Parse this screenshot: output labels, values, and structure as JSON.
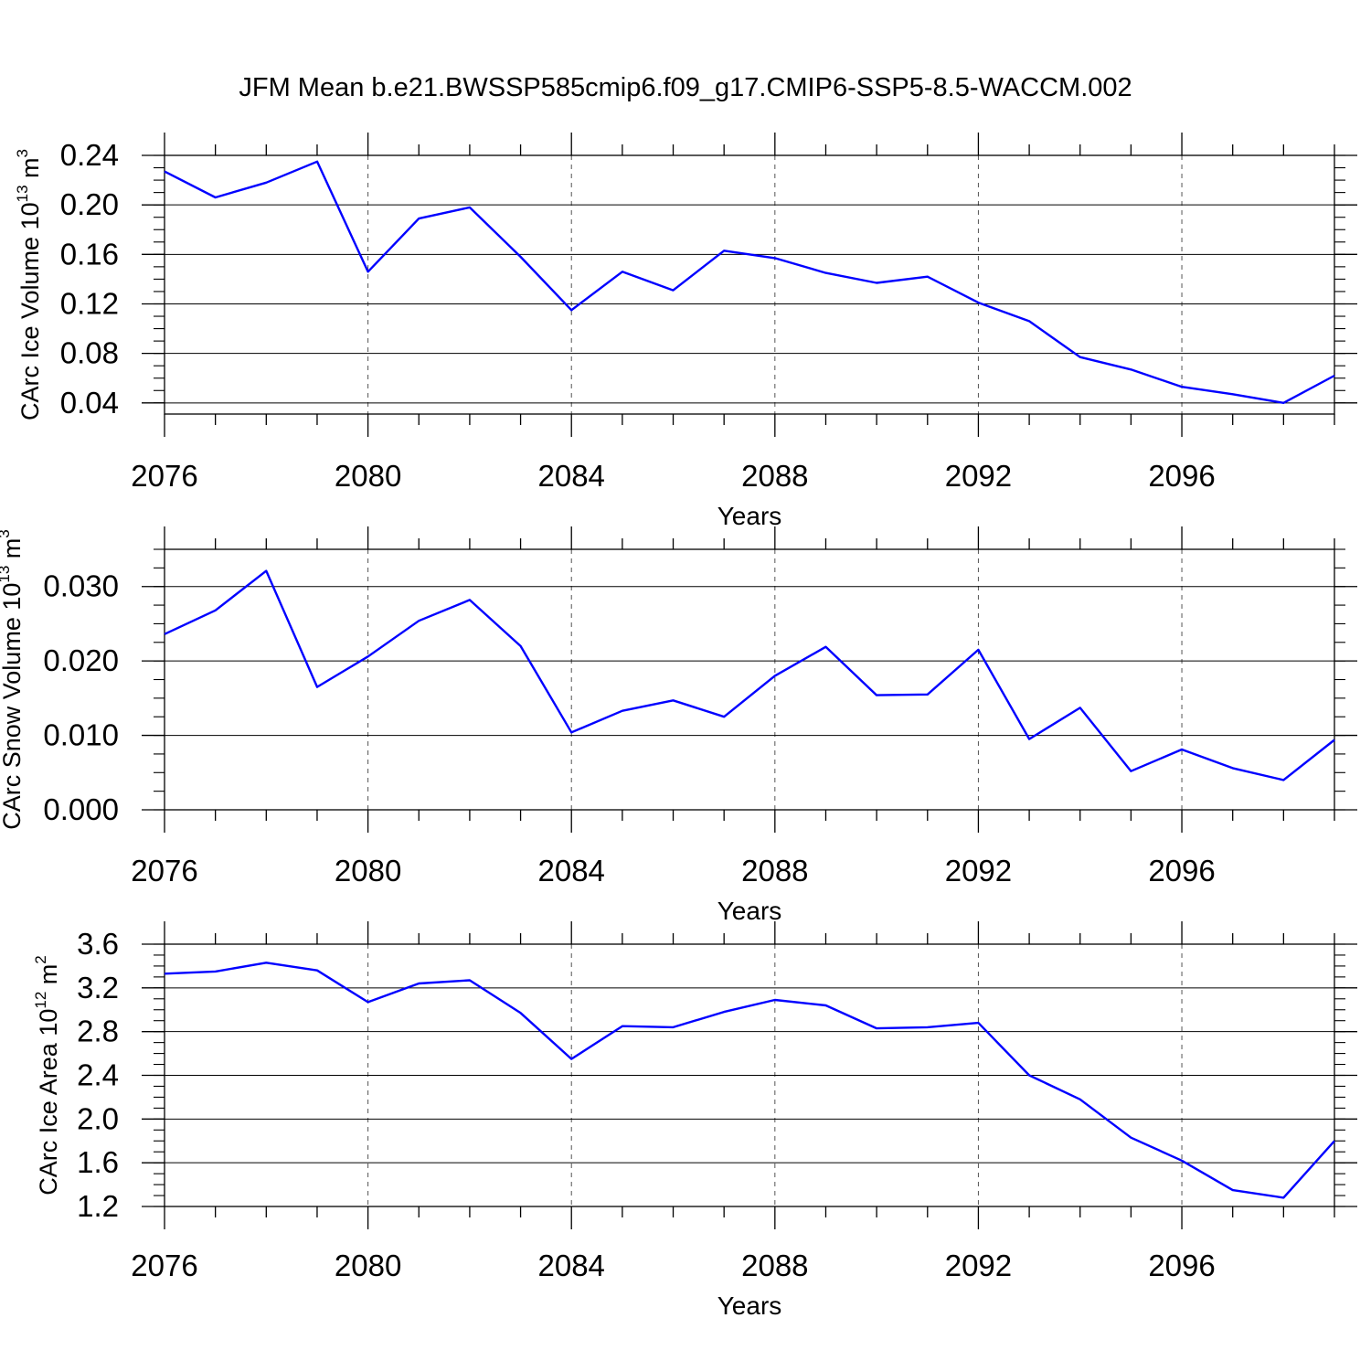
{
  "title": "JFM Mean b.e21.BWSSP585cmip6.f09_g17.CMIP6-SSP5-8.5-WACCM.002",
  "colors": {
    "line": "#0000ff",
    "axis": "#000000",
    "grid": "#555555",
    "background": "#ffffff"
  },
  "chart_data": [
    {
      "type": "line",
      "title": "",
      "xlabel": "Years",
      "ylabel": "CArc Ice Volume 10",
      "ylabel_sup": "13",
      "ylabel_unit": "m",
      "ylabel_unit_sup": "3",
      "xlim": [
        2076,
        2099
      ],
      "ylim": [
        0.031,
        0.24
      ],
      "xticks": [
        "2076",
        "2080",
        "2084",
        "2088",
        "2092",
        "2096"
      ],
      "yticks": [
        "0.04",
        "0.08",
        "0.12",
        "0.16",
        "0.20",
        "0.24"
      ],
      "grid": "vertical dashed at labeled years",
      "series": [
        {
          "x": [
            2076,
            2077,
            2078,
            2079,
            2080,
            2081,
            2082,
            2083,
            2084,
            2085,
            2086,
            2087,
            2088,
            2089,
            2090,
            2091,
            2092,
            2093,
            2094,
            2095,
            2096,
            2097,
            2098,
            2099
          ],
          "values": [
            0.227,
            0.206,
            0.218,
            0.235,
            0.146,
            0.189,
            0.198,
            0.158,
            0.115,
            0.146,
            0.131,
            0.163,
            0.157,
            0.145,
            0.137,
            0.142,
            0.121,
            0.106,
            0.077,
            0.067,
            0.053,
            0.047,
            0.04,
            0.062
          ]
        }
      ]
    },
    {
      "type": "line",
      "title": "",
      "xlabel": "Years",
      "ylabel": "CArc Snow Volume 10",
      "ylabel_sup": "13",
      "ylabel_unit": "m",
      "ylabel_unit_sup": "3",
      "xlim": [
        2076,
        2099
      ],
      "ylim": [
        0.0,
        0.035
      ],
      "xticks": [
        "2076",
        "2080",
        "2084",
        "2088",
        "2092",
        "2096"
      ],
      "yticks": [
        "0.000",
        "0.010",
        "0.020",
        "0.030"
      ],
      "grid": "vertical dashed at labeled years",
      "series": [
        {
          "x": [
            2076,
            2077,
            2078,
            2079,
            2080,
            2081,
            2082,
            2083,
            2084,
            2085,
            2086,
            2087,
            2088,
            2089,
            2090,
            2091,
            2092,
            2093,
            2094,
            2095,
            2096,
            2097,
            2098,
            2099
          ],
          "values": [
            0.0236,
            0.0268,
            0.0321,
            0.0165,
            0.0206,
            0.0254,
            0.0282,
            0.022,
            0.0104,
            0.0133,
            0.0147,
            0.0125,
            0.018,
            0.0219,
            0.0154,
            0.0155,
            0.0215,
            0.0095,
            0.0137,
            0.0052,
            0.0081,
            0.0056,
            0.004,
            0.0094
          ]
        }
      ]
    },
    {
      "type": "line",
      "title": "",
      "xlabel": "Years",
      "ylabel": "CArc Ice Area 10",
      "ylabel_sup": "12",
      "ylabel_unit": "m",
      "ylabel_unit_sup": "2",
      "xlim": [
        2076,
        2099
      ],
      "ylim": [
        1.2,
        3.6
      ],
      "xticks": [
        "2076",
        "2080",
        "2084",
        "2088",
        "2092",
        "2096"
      ],
      "yticks": [
        "1.2",
        "1.6",
        "2.0",
        "2.4",
        "2.8",
        "3.2",
        "3.6"
      ],
      "grid": "vertical dashed at labeled years",
      "series": [
        {
          "x": [
            2076,
            2077,
            2078,
            2079,
            2080,
            2081,
            2082,
            2083,
            2084,
            2085,
            2086,
            2087,
            2088,
            2089,
            2090,
            2091,
            2092,
            2093,
            2094,
            2095,
            2096,
            2097,
            2098,
            2099
          ],
          "values": [
            3.33,
            3.35,
            3.43,
            3.36,
            3.07,
            3.24,
            3.27,
            2.97,
            2.55,
            2.85,
            2.84,
            2.98,
            3.09,
            3.04,
            2.83,
            2.84,
            2.88,
            2.4,
            2.18,
            1.83,
            1.62,
            1.35,
            1.28,
            1.8
          ]
        }
      ]
    }
  ]
}
